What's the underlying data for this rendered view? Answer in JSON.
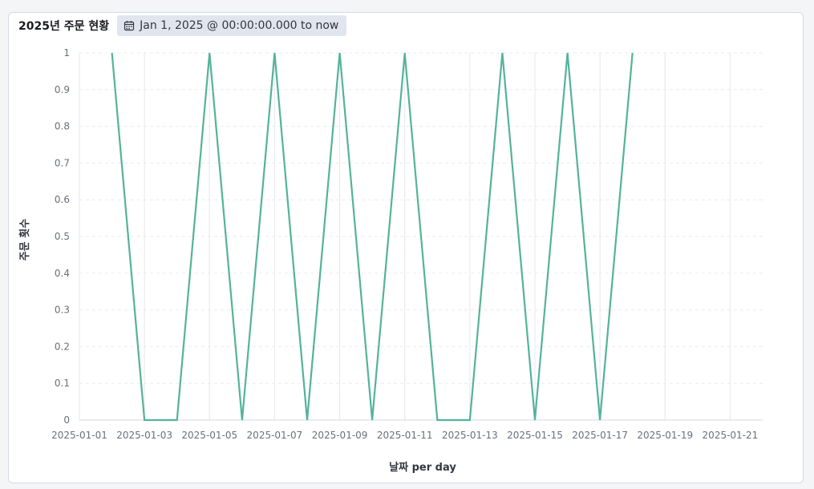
{
  "panel": {
    "title": "2025년 주문 현황",
    "time_range": "Jan 1, 2025 @ 00:00:00.000 to now",
    "time_icon": "calendar-icon"
  },
  "colors": {
    "line": "#54b399",
    "grid": "#e9ebef",
    "axis": "#d3dae6"
  },
  "chart_data": {
    "type": "line",
    "title": "2025년 주문 현황",
    "xlabel": "날짜 per day",
    "ylabel": "주문 횟수",
    "ylim": [
      0,
      1
    ],
    "y_ticks": [
      0,
      0.1,
      0.2,
      0.3,
      0.4,
      0.5,
      0.6,
      0.7,
      0.8,
      0.9,
      1
    ],
    "x_range": [
      "2025-01-01",
      "2025-01-22"
    ],
    "x_ticks": [
      "2025-01-01",
      "2025-01-03",
      "2025-01-05",
      "2025-01-07",
      "2025-01-09",
      "2025-01-11",
      "2025-01-13",
      "2025-01-15",
      "2025-01-17",
      "2025-01-19",
      "2025-01-21"
    ],
    "grid": true,
    "series": [
      {
        "x": [
          "2025-01-02",
          "2025-01-03",
          "2025-01-04",
          "2025-01-05",
          "2025-01-06",
          "2025-01-07",
          "2025-01-08",
          "2025-01-09",
          "2025-01-10",
          "2025-01-11",
          "2025-01-12",
          "2025-01-13",
          "2025-01-14",
          "2025-01-15",
          "2025-01-16",
          "2025-01-17",
          "2025-01-18"
        ],
        "values": [
          1,
          0,
          0,
          1,
          0,
          1,
          0,
          1,
          0,
          1,
          0,
          0,
          1,
          0,
          1,
          0,
          1
        ]
      }
    ]
  }
}
